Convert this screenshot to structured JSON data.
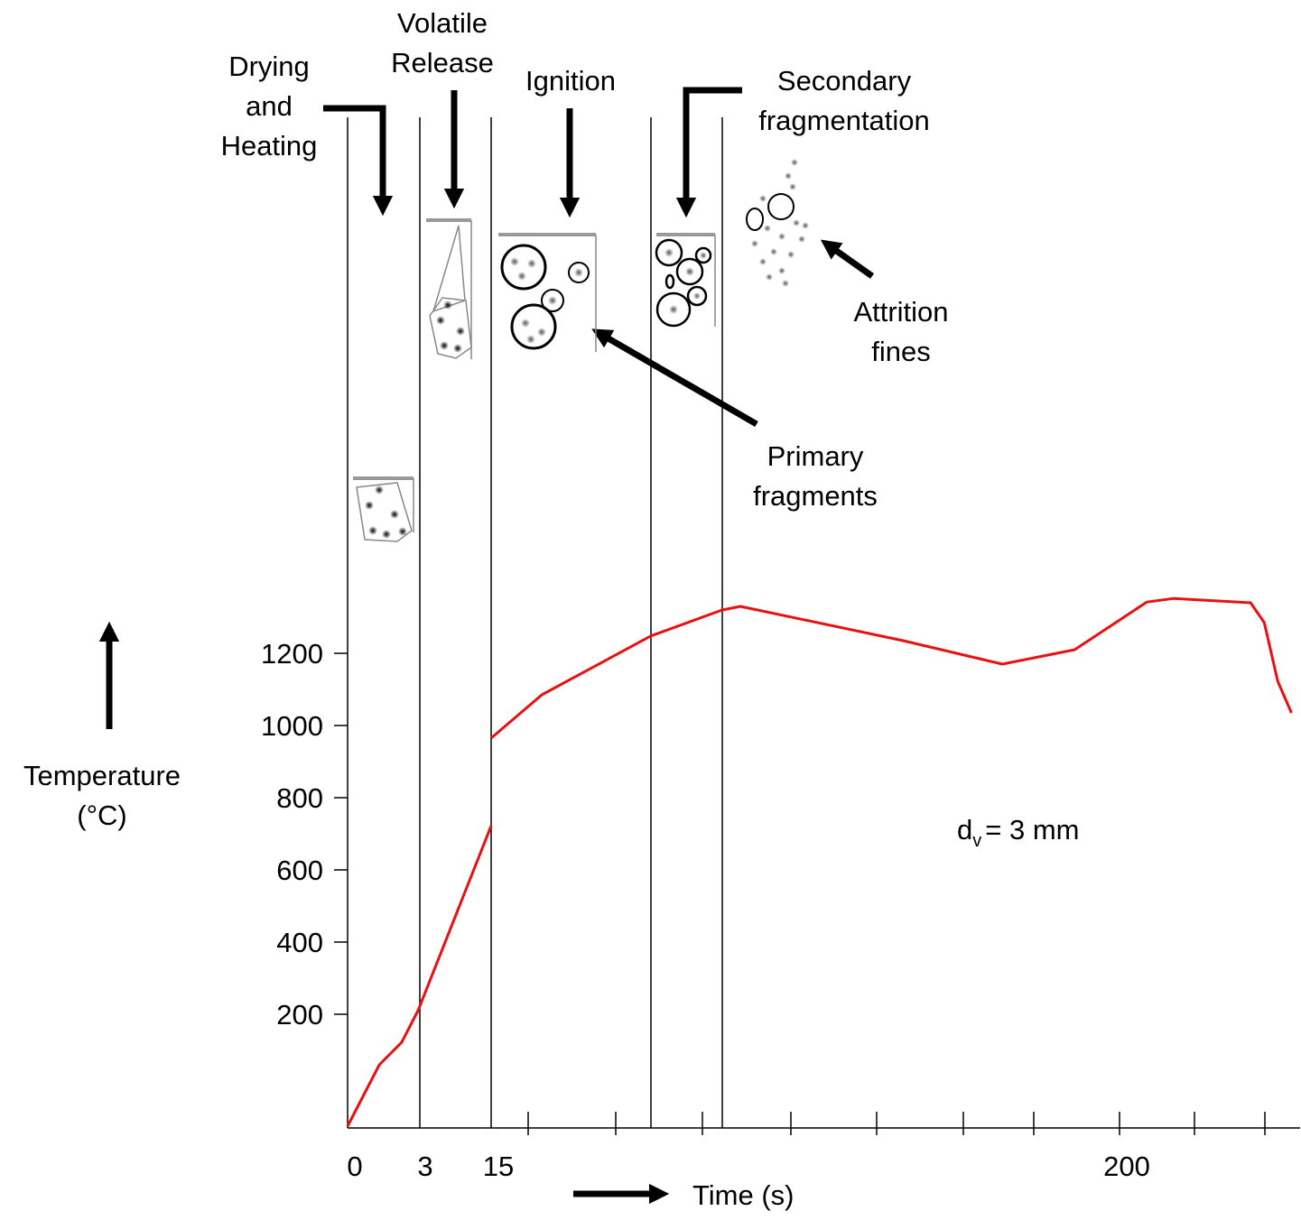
{
  "chart_data": {
    "type": "line",
    "stages": [
      [
        "Drying",
        "and",
        "Heating"
      ],
      [
        "Volatile",
        "Release"
      ],
      [
        "Ignition"
      ],
      [
        "Secondary",
        "fragmentation"
      ]
    ],
    "callouts": [
      [
        "Primary",
        "fragments"
      ],
      [
        "Attrition",
        "fines"
      ]
    ],
    "y_label": [
      "Temperature",
      "(°C)"
    ],
    "x_label": "Time (s)",
    "annotation": [
      "d",
      "v",
      "= 3 mm"
    ],
    "x": [
      0,
      1.35,
      2.3,
      3,
      15,
      15,
      15,
      29.9,
      62,
      83,
      88.4,
      136.3,
      165.5,
      186.8,
      208,
      216,
      238.6,
      242.6,
      246.6,
      250.6
    ],
    "series": [
      {
        "color": "#e81010",
        "values": [
          -110,
          60,
          122,
          210,
          722,
          null,
          965,
          1085,
          1248,
          1320,
          1330,
          1235,
          1170,
          1210,
          1342,
          1352,
          1340,
          1285,
          1122,
          1035
        ]
      }
    ],
    "xticks": [
      0,
      3,
      15,
      200
    ],
    "ylim": [
      -115,
      2685
    ],
    "yticks": [
      200,
      400,
      600,
      800,
      1000,
      1200
    ]
  }
}
